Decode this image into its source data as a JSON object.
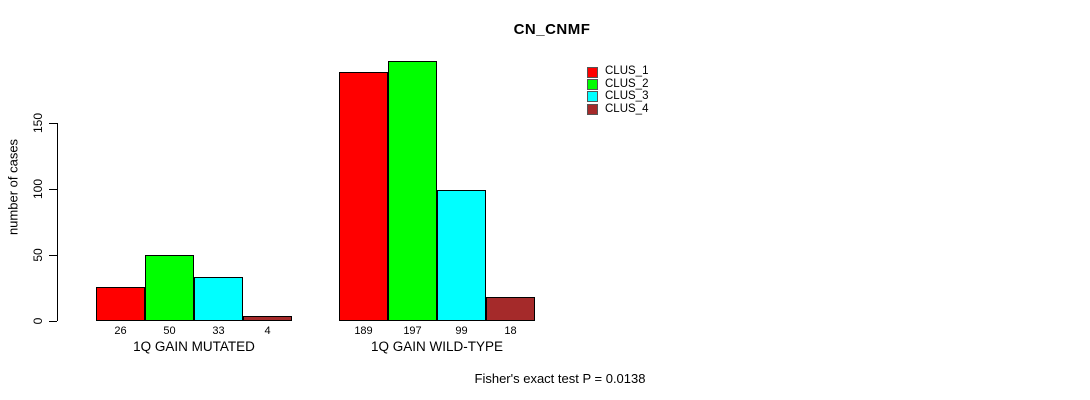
{
  "chart_data": {
    "type": "bar",
    "title": "CN_CNMF",
    "xlabel": "",
    "ylabel": "number of cases",
    "ylim": [
      0,
      200
    ],
    "yticks": [
      0,
      50,
      100,
      150
    ],
    "grid": false,
    "legend_position": "top-right",
    "categories": [
      "1Q GAIN MUTATED",
      "1Q GAIN WILD-TYPE"
    ],
    "series": [
      {
        "name": "CLUS_1",
        "color": "#FF0000",
        "values": [
          26,
          189
        ]
      },
      {
        "name": "CLUS_2",
        "color": "#00FF00",
        "values": [
          50,
          197
        ]
      },
      {
        "name": "CLUS_3",
        "color": "#00FFFF",
        "values": [
          33,
          99
        ]
      },
      {
        "name": "CLUS_4",
        "color": "#A52A2A",
        "values": [
          4,
          18
        ]
      }
    ],
    "annotation": "Fisher's exact test P = 0.0138"
  }
}
